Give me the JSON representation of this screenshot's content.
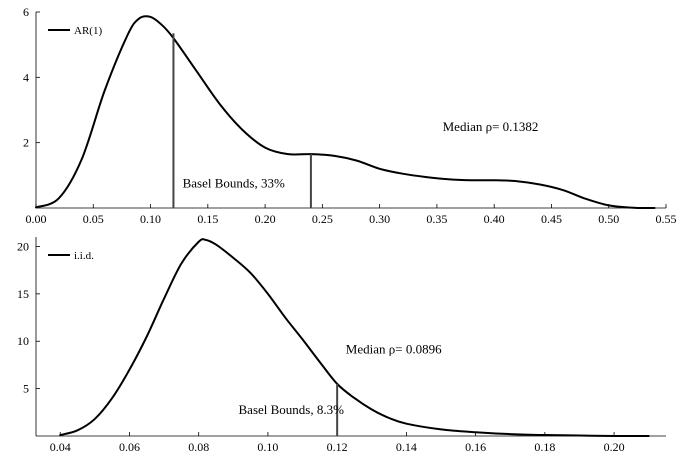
{
  "chart_data": [
    {
      "type": "line",
      "xlim": [
        0.0,
        0.55
      ],
      "ylim": [
        0,
        6
      ],
      "x_ticks": [
        "0.00",
        "0.05",
        "0.10",
        "0.15",
        "0.20",
        "0.25",
        "0.30",
        "0.35",
        "0.40",
        "0.45",
        "0.50",
        "0.55"
      ],
      "y_ticks": [
        "2",
        "4",
        "6"
      ],
      "legend": {
        "label": "AR(1)",
        "placement": "top-left"
      },
      "series": [
        {
          "name": "AR(1)",
          "x": [
            0.0,
            0.02,
            0.04,
            0.06,
            0.08,
            0.09,
            0.1,
            0.11,
            0.12,
            0.14,
            0.16,
            0.18,
            0.2,
            0.22,
            0.24,
            0.26,
            0.28,
            0.3,
            0.32,
            0.34,
            0.36,
            0.38,
            0.4,
            0.42,
            0.44,
            0.46,
            0.48,
            0.5,
            0.52,
            0.54
          ],
          "y": [
            0.02,
            0.3,
            1.5,
            3.6,
            5.3,
            5.8,
            5.85,
            5.6,
            5.2,
            4.2,
            3.2,
            2.4,
            1.85,
            1.65,
            1.65,
            1.6,
            1.45,
            1.2,
            1.05,
            0.95,
            0.88,
            0.85,
            0.85,
            0.82,
            0.72,
            0.55,
            0.28,
            0.08,
            0.01,
            0.0
          ]
        }
      ],
      "vlines": [
        {
          "x": 0.12,
          "y": 5.35
        },
        {
          "x": 0.24,
          "y": 1.65
        }
      ],
      "annotations": [
        {
          "text": "Basel Bounds, 33%",
          "x": 0.128,
          "y": 0.62
        },
        {
          "text": "Median ρ= 0.1382",
          "x": 0.355,
          "y": 2.35
        }
      ]
    },
    {
      "type": "line",
      "xlim": [
        0.033,
        0.215
      ],
      "ylim": [
        0,
        21
      ],
      "x_ticks": [
        "0.04",
        "0.06",
        "0.08",
        "0.10",
        "0.12",
        "0.14",
        "0.16",
        "0.18",
        "0.20"
      ],
      "y_ticks": [
        "5",
        "10",
        "15",
        "20"
      ],
      "legend": {
        "label": "i.i.d.",
        "placement": "top-left"
      },
      "series": [
        {
          "name": "i.i.d.",
          "x": [
            0.04,
            0.045,
            0.05,
            0.055,
            0.06,
            0.065,
            0.07,
            0.075,
            0.08,
            0.082,
            0.085,
            0.09,
            0.095,
            0.1,
            0.105,
            0.11,
            0.115,
            0.12,
            0.125,
            0.13,
            0.135,
            0.14,
            0.15,
            0.16,
            0.17,
            0.18,
            0.19,
            0.2,
            0.21
          ],
          "y": [
            0.1,
            0.6,
            1.8,
            4.0,
            7.0,
            10.5,
            14.5,
            18.2,
            20.5,
            20.7,
            20.2,
            18.8,
            17.2,
            15.0,
            12.5,
            10.2,
            7.8,
            5.5,
            4.0,
            2.8,
            1.9,
            1.3,
            0.7,
            0.4,
            0.2,
            0.1,
            0.05,
            0.0,
            0.0
          ]
        }
      ],
      "vlines": [
        {
          "x": 0.12,
          "y": 5.5
        }
      ],
      "annotations": [
        {
          "text": "Basel Bounds, 8.3%",
          "x": 0.0915,
          "y": 2.3
        },
        {
          "text": "Median ρ= 0.0896",
          "x": 0.1225,
          "y": 8.7
        }
      ]
    }
  ]
}
